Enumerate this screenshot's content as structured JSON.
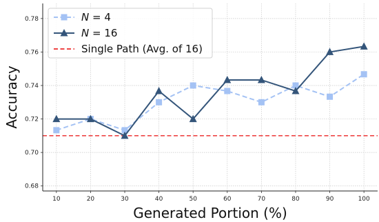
{
  "chart_data": {
    "type": "line",
    "xlabel": "Generated Portion (%)",
    "ylabel": "Accuracy",
    "x": [
      10,
      20,
      30,
      40,
      50,
      60,
      70,
      80,
      90,
      100
    ],
    "x_ticks": [
      "10",
      "20",
      "30",
      "40",
      "50",
      "60",
      "70",
      "80",
      "90",
      "100"
    ],
    "y_ticks": [
      "0.68",
      "0.70",
      "0.72",
      "0.74",
      "0.76",
      "0.78"
    ],
    "xlim": [
      6,
      104
    ],
    "ylim": [
      0.677,
      0.789
    ],
    "grid": true,
    "legend_position": "top-left",
    "series": [
      {
        "name": "N = 4",
        "legend_var": "N",
        "legend_rest": " = 4",
        "color": "#a4c2f4",
        "line_style": "dashed",
        "marker": "square",
        "values": [
          0.7133,
          0.72,
          0.7133,
          0.73,
          0.74,
          0.7367,
          0.73,
          0.74,
          0.7333,
          0.7467
        ]
      },
      {
        "name": "N = 16",
        "legend_var": "N",
        "legend_rest": " = 16",
        "color": "#34557a",
        "line_style": "solid",
        "marker": "triangle",
        "values": [
          0.72,
          0.72,
          0.71,
          0.7367,
          0.72,
          0.7433,
          0.7433,
          0.7367,
          0.76,
          0.7633
        ]
      }
    ],
    "reference_line": {
      "name": "Single Path (Avg. of 16)",
      "value": 0.71,
      "color": "#ee4444",
      "line_style": "dashed"
    }
  }
}
